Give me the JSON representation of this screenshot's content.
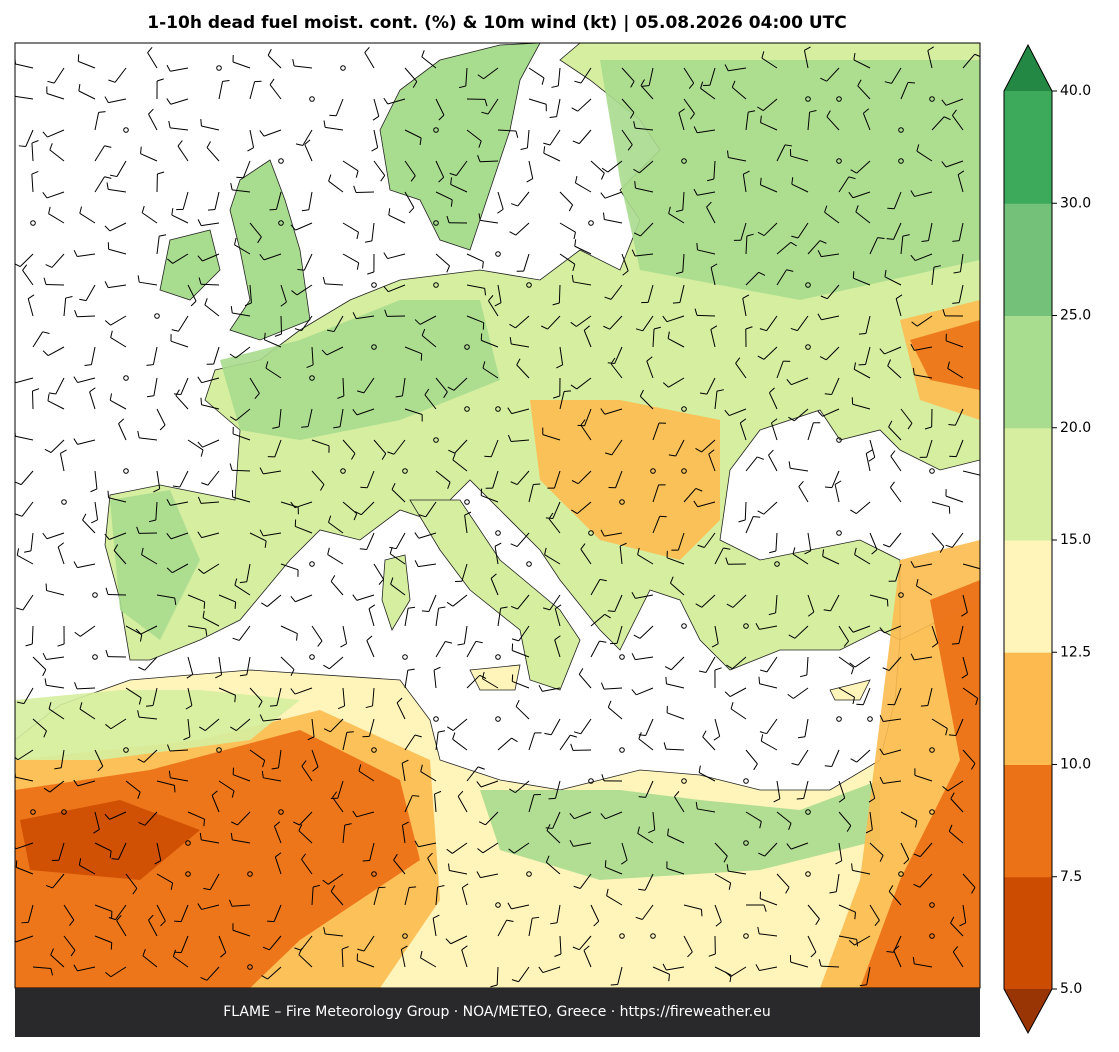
{
  "header": {
    "title": "1-10h dead fuel moist. cont. (%) & 10m wind (kt)  |  05.08.2026 04:00 UTC"
  },
  "colorbar": {
    "ticks": [
      {
        "value": 5,
        "label": "5.0"
      },
      {
        "value": 7.5,
        "label": "7.5"
      },
      {
        "value": 10,
        "label": "10.0"
      },
      {
        "value": 12.5,
        "label": "12.5"
      },
      {
        "value": 15,
        "label": "15.0"
      },
      {
        "value": 20,
        "label": "20.0"
      },
      {
        "value": 25,
        "label": "25.0"
      },
      {
        "value": 30,
        "label": "30.0"
      },
      {
        "value": 40,
        "label": "40.0"
      }
    ],
    "colors": [
      "#cc4c02",
      "#ec7218",
      "#fdbb4f",
      "#fff5bb",
      "#d5ee9f",
      "#a8dc8e",
      "#74c27a",
      "#3daa5b"
    ],
    "under_color": "#993404",
    "over_color": "#228844"
  },
  "footer": {
    "text": "FLAME – Fire Meteorology Group · NOA/METEO, Greece · https://fireweather.eu"
  }
}
